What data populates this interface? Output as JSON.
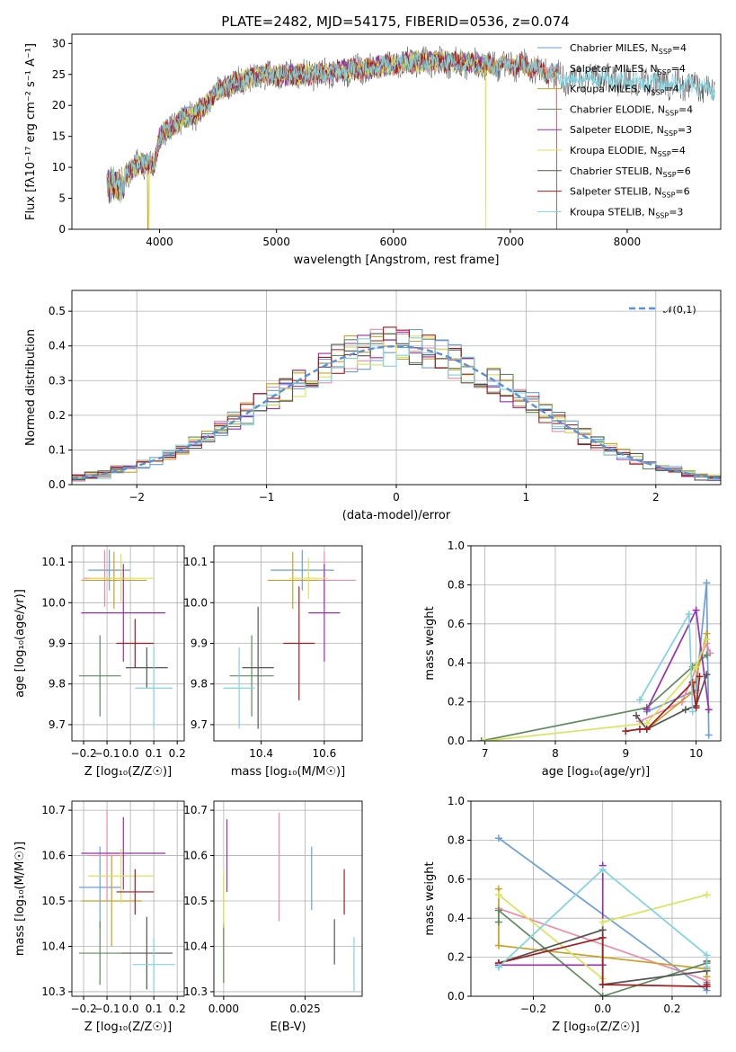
{
  "title": "PLATE=2482, MJD=54175, FIBERID=0536, z=0.074",
  "colors": {
    "Chabrier MILES": "#6a9fd8",
    "Salpeter MILES": "#ef8aa8",
    "Kroupa MILES": "#c9a227",
    "Chabrier ELODIE": "#5e8c5e",
    "Salpeter ELODIE": "#9b2fae",
    "Kroupa ELODIE": "#d9e45a",
    "Chabrier STELIB": "#555555",
    "Salpeter STELIB": "#a31f1f",
    "Kroupa STELIB": "#7fd3e0"
  },
  "chart_data": [
    {
      "type": "line",
      "panel": "spectrum",
      "xlabel": "wavelength [Angstrom, rest frame]",
      "ylabel": "Flux [fλ10⁻¹⁷ erg cm⁻² s⁻¹ A⁻¹]",
      "xlim": [
        3250,
        8800
      ],
      "ylim": [
        0,
        31.5
      ],
      "xticks": [
        4000,
        5000,
        6000,
        7000,
        8000
      ],
      "yticks": [
        0,
        5,
        10,
        15,
        20,
        25,
        30
      ],
      "grid": false,
      "legend_position": "right",
      "continuum_knots_x": [
        3550,
        3700,
        3850,
        3950,
        4000,
        4100,
        4200,
        4300,
        4400,
        4500,
        4700,
        4900,
        5100,
        5300,
        5500,
        5800,
        6100,
        6500,
        6800,
        7100,
        7300,
        7500,
        7700,
        8000,
        8300,
        8600,
        8750
      ],
      "continuum_knots_y": [
        9,
        8.5,
        11,
        10,
        15,
        16.5,
        18,
        18.5,
        20,
        22.5,
        24,
        25,
        25,
        25,
        25.5,
        26,
        27,
        27,
        26.5,
        26.5,
        25.5,
        24,
        24.5,
        24,
        23.5,
        23,
        22.5
      ],
      "series": [
        {
          "name": "Chabrier MILES",
          "nssp": "4",
          "xmax": 7400
        },
        {
          "name": "Salpeter MILES",
          "nssp": "4",
          "xmax": 7400
        },
        {
          "name": "Kroupa MILES",
          "nssp": "4",
          "xmax": 7400,
          "spikes_x": [
            3900
          ]
        },
        {
          "name": "Chabrier ELODIE",
          "nssp": "4",
          "xmax": 6800
        },
        {
          "name": "Salpeter ELODIE",
          "nssp": "3",
          "xmax": 6800
        },
        {
          "name": "Kroupa ELODIE",
          "nssp": "4",
          "xmax": 6800,
          "spikes_x": [
            3910,
            6790
          ]
        },
        {
          "name": "Chabrier STELIB",
          "nssp": "6",
          "xmax": 8750
        },
        {
          "name": "Salpeter STELIB",
          "nssp": "6",
          "xmax": 7400,
          "spikes_x": [
            7400
          ]
        },
        {
          "name": "Kroupa STELIB",
          "nssp": "3",
          "xmax": 8750
        }
      ]
    },
    {
      "type": "step",
      "panel": "residual-histogram",
      "xlabel": "(data-model)/error",
      "ylabel": "Normed distribution",
      "xlim": [
        -2.5,
        2.5
      ],
      "ylim": [
        0,
        0.56
      ],
      "xticks": [
        -2,
        -1,
        0,
        1,
        2
      ],
      "yticks": [
        0.0,
        0.1,
        0.2,
        0.3,
        0.4,
        0.5
      ],
      "grid": true,
      "legend": {
        "label": "𝒩(0,1)",
        "position": "top-right"
      },
      "bin_width": 0.1
    },
    {
      "type": "errorbar",
      "panel": "age-vs-Z",
      "xlabel": "Z [log₁₀(Z/Z☉)]",
      "ylabel": "age  [log₁₀(age/yr)]",
      "xlim": [
        -0.25,
        0.23
      ],
      "ylim": [
        9.66,
        10.14
      ],
      "xticks": [
        -0.2,
        -0.1,
        0.0,
        0.1,
        0.2
      ],
      "yticks": [
        9.7,
        9.8,
        9.9,
        10.0,
        10.1
      ],
      "grid": true,
      "points": [
        {
          "series": "Chabrier MILES",
          "x": -0.09,
          "y": 10.08,
          "xerr": 0.09,
          "yerr": 0.05
        },
        {
          "series": "Salpeter MILES",
          "x": -0.11,
          "y": 10.06,
          "xerr": 0.09,
          "yerr": 0.07
        },
        {
          "series": "Kroupa MILES",
          "x": -0.07,
          "y": 10.055,
          "xerr": 0.14,
          "yerr": 0.07
        },
        {
          "series": "Chabrier ELODIE",
          "x": -0.13,
          "y": 9.82,
          "xerr": 0.09,
          "yerr": 0.1
        },
        {
          "series": "Salpeter ELODIE",
          "x": -0.03,
          "y": 9.975,
          "xerr": 0.18,
          "yerr": 0.12
        },
        {
          "series": "Kroupa ELODIE",
          "x": -0.04,
          "y": 10.06,
          "xerr": 0.14,
          "yerr": 0.06
        },
        {
          "series": "Chabrier STELIB",
          "x": 0.07,
          "y": 9.84,
          "xerr": 0.09,
          "yerr": 0.05
        },
        {
          "series": "Salpeter STELIB",
          "x": 0.02,
          "y": 9.9,
          "xerr": 0.08,
          "yerr": 0.06
        },
        {
          "series": "Kroupa STELIB",
          "x": 0.1,
          "y": 9.79,
          "xerr": 0.08,
          "yerr": 0.1
        }
      ]
    },
    {
      "type": "errorbar",
      "panel": "age-vs-mass",
      "xlabel": "mass [log₁₀(M/M☉)]",
      "ylabel": "",
      "xlim": [
        10.25,
        10.72
      ],
      "ylim": [
        9.66,
        10.14
      ],
      "xticks": [
        10.4,
        10.6
      ],
      "yticks": [
        9.7,
        9.8,
        9.9,
        10.0,
        10.1
      ],
      "grid": true,
      "points": [
        {
          "series": "Chabrier MILES",
          "x": 10.53,
          "y": 10.08,
          "xerr": 0.1,
          "yerr": 0.05
        },
        {
          "series": "Salpeter MILES",
          "x": 10.6,
          "y": 10.055,
          "xerr": 0.1,
          "yerr": 0.07
        },
        {
          "series": "Kroupa MILES",
          "x": 10.5,
          "y": 10.055,
          "xerr": 0.08,
          "yerr": 0.07
        },
        {
          "series": "Chabrier ELODIE",
          "x": 10.37,
          "y": 9.82,
          "xerr": 0.07,
          "yerr": 0.1
        },
        {
          "series": "Salpeter ELODIE",
          "x": 10.6,
          "y": 9.975,
          "xerr": 0.05,
          "yerr": 0.12
        },
        {
          "series": "Kroupa ELODIE",
          "x": 10.55,
          "y": 10.06,
          "xerr": 0.06,
          "yerr": 0.05
        },
        {
          "series": "Chabrier STELIB",
          "x": 10.39,
          "y": 9.84,
          "xerr": 0.05,
          "yerr": 0.15
        },
        {
          "series": "Salpeter STELIB",
          "x": 10.52,
          "y": 9.9,
          "xerr": 0.05,
          "yerr": 0.14
        },
        {
          "series": "Kroupa STELIB",
          "x": 10.33,
          "y": 9.79,
          "xerr": 0.05,
          "yerr": 0.1
        }
      ]
    },
    {
      "type": "line",
      "panel": "mass-weight-vs-age",
      "xlabel": "age  [log₁₀(age/yr)]",
      "ylabel": "mass weight",
      "xlim": [
        6.8,
        10.35
      ],
      "ylim": [
        0,
        1
      ],
      "xticks": [
        7,
        8,
        9,
        10
      ],
      "yticks": [
        0.0,
        0.2,
        0.4,
        0.6,
        0.8,
        1.0
      ],
      "grid": true,
      "series": [
        {
          "name": "Chabrier MILES",
          "x": [
            9.3,
            10.0,
            10.15,
            10.18
          ],
          "y": [
            0.15,
            0.26,
            0.81,
            0.03
          ]
        },
        {
          "name": "Salpeter MILES",
          "x": [
            9.2,
            9.8,
            10.15,
            10.2
          ],
          "y": [
            0.1,
            0.2,
            0.5,
            0.45
          ]
        },
        {
          "name": "Kroupa MILES",
          "x": [
            9.3,
            9.95,
            10.15
          ],
          "y": [
            0.06,
            0.25,
            0.55
          ]
        },
        {
          "name": "Chabrier ELODIE",
          "x": [
            6.95,
            9.3,
            9.95,
            10.15
          ],
          "y": [
            0.0,
            0.17,
            0.38,
            0.44
          ]
        },
        {
          "name": "Salpeter ELODIE",
          "x": [
            9.3,
            10.0,
            10.18
          ],
          "y": [
            0.16,
            0.67,
            0.16
          ]
        },
        {
          "name": "Kroupa ELODIE",
          "x": [
            7.0,
            9.3,
            10.0,
            10.15
          ],
          "y": [
            0.0,
            0.09,
            0.38,
            0.52
          ]
        },
        {
          "name": "Chabrier STELIB",
          "x": [
            9.15,
            9.3,
            9.85,
            10.0,
            10.15
          ],
          "y": [
            0.13,
            0.06,
            0.16,
            0.18,
            0.34
          ]
        },
        {
          "name": "Salpeter STELIB",
          "x": [
            9.0,
            9.2,
            9.3,
            9.95,
            10.0,
            10.05
          ],
          "y": [
            0.05,
            0.06,
            0.06,
            0.3,
            0.17,
            0.33
          ]
        },
        {
          "name": "Kroupa STELIB",
          "x": [
            9.2,
            9.9,
            9.95
          ],
          "y": [
            0.21,
            0.65,
            0.15
          ]
        }
      ]
    },
    {
      "type": "errorbar",
      "panel": "mass-vs-Z",
      "xlabel": "Z [log₁₀(Z/Z☉)]",
      "ylabel": "mass [log₁₀(M/M☉)]",
      "xlim": [
        -0.25,
        0.23
      ],
      "ylim": [
        10.29,
        10.72
      ],
      "xticks": [
        -0.2,
        -0.1,
        0.0,
        0.1,
        0.2
      ],
      "yticks": [
        10.3,
        10.4,
        10.5,
        10.6,
        10.7
      ],
      "grid": true,
      "points": [
        {
          "series": "Chabrier MILES",
          "x": -0.13,
          "y": 10.53,
          "xerr": 0.09,
          "yerr": 0.09
        },
        {
          "series": "Salpeter MILES",
          "x": -0.1,
          "y": 10.6,
          "xerr": 0.08,
          "yerr": 0.1
        },
        {
          "series": "Kroupa MILES",
          "x": -0.08,
          "y": 10.5,
          "xerr": 0.13,
          "yerr": 0.1
        },
        {
          "series": "Chabrier ELODIE",
          "x": -0.13,
          "y": 10.385,
          "xerr": 0.09,
          "yerr": 0.07
        },
        {
          "series": "Salpeter ELODIE",
          "x": -0.03,
          "y": 10.605,
          "xerr": 0.18,
          "yerr": 0.08
        },
        {
          "series": "Kroupa ELODIE",
          "x": -0.04,
          "y": 10.555,
          "xerr": 0.14,
          "yerr": 0.06
        },
        {
          "series": "Chabrier STELIB",
          "x": 0.07,
          "y": 10.385,
          "xerr": 0.11,
          "yerr": 0.08
        },
        {
          "series": "Salpeter STELIB",
          "x": 0.02,
          "y": 10.52,
          "xerr": 0.08,
          "yerr": 0.05
        },
        {
          "series": "Kroupa STELIB",
          "x": 0.1,
          "y": 10.36,
          "xerr": 0.09,
          "yerr": 0.06
        }
      ]
    },
    {
      "type": "errorbar",
      "panel": "mass-vs-EBV",
      "xlabel": "E(B-V)",
      "ylabel": "",
      "xlim": [
        -0.003,
        0.0425
      ],
      "ylim": [
        10.29,
        10.72
      ],
      "xticks": [
        0.0,
        0.025
      ],
      "xtick_labels": [
        "0.000",
        "0.025"
      ],
      "yticks": [
        10.3,
        10.4,
        10.5,
        10.6,
        10.7
      ],
      "grid": true,
      "points": [
        {
          "series": "Chabrier MILES",
          "x": 0.027,
          "y": 10.55,
          "xerr": 0,
          "yerr": 0.07
        },
        {
          "series": "Salpeter MILES",
          "x": 0.017,
          "y": 10.575,
          "xerr": 0,
          "yerr": 0.12
        },
        {
          "series": "Kroupa MILES",
          "x": 0.0,
          "y": 10.44,
          "xerr": 0,
          "yerr": 0.12
        },
        {
          "series": "Chabrier ELODIE",
          "x": 0.0,
          "y": 10.38,
          "xerr": 0,
          "yerr": 0.06
        },
        {
          "series": "Salpeter ELODIE",
          "x": 0.001,
          "y": 10.6,
          "xerr": 0,
          "yerr": 0.08
        },
        {
          "series": "Kroupa ELODIE",
          "x": 0.0,
          "y": 10.51,
          "xerr": 0,
          "yerr": 0.06
        },
        {
          "series": "Chabrier STELIB",
          "x": 0.034,
          "y": 10.41,
          "xerr": 0,
          "yerr": 0.05
        },
        {
          "series": "Salpeter STELIB",
          "x": 0.037,
          "y": 10.52,
          "xerr": 0,
          "yerr": 0.05
        },
        {
          "series": "Kroupa STELIB",
          "x": 0.04,
          "y": 10.36,
          "xerr": 0,
          "yerr": 0.06
        }
      ]
    },
    {
      "type": "line",
      "panel": "mass-weight-vs-Z",
      "xlabel": "Z [log₁₀(Z/Z☉)]",
      "ylabel": "mass weight",
      "xlim": [
        -0.38,
        0.34
      ],
      "ylim": [
        0,
        1
      ],
      "xticks": [
        -0.2,
        0.0,
        0.2
      ],
      "yticks": [
        0.0,
        0.2,
        0.4,
        0.6,
        0.8,
        1.0
      ],
      "grid": true,
      "series": [
        {
          "name": "Chabrier MILES",
          "x": [
            -0.3,
            0.3,
            0.3
          ],
          "y": [
            0.81,
            0.03,
            0.07
          ]
        },
        {
          "name": "Salpeter MILES",
          "x": [
            -0.3,
            0.3,
            0.3
          ],
          "y": [
            0.45,
            0.08,
            0.1
          ]
        },
        {
          "name": "Kroupa MILES",
          "x": [
            -0.3,
            -0.3,
            0.3,
            0.3
          ],
          "y": [
            0.55,
            0.26,
            0.14,
            0.1
          ]
        },
        {
          "name": "Chabrier ELODIE",
          "x": [
            -0.3,
            -0.3,
            0.0,
            0.3
          ],
          "y": [
            0.38,
            0.44,
            0.0,
            0.17
          ]
        },
        {
          "name": "Salpeter ELODIE",
          "x": [
            -0.3,
            0.0,
            0.0
          ],
          "y": [
            0.16,
            0.16,
            0.67
          ]
        },
        {
          "name": "Kroupa ELODIE",
          "x": [
            -0.3,
            0.0,
            0.0,
            0.3
          ],
          "y": [
            0.52,
            0.09,
            0.38,
            0.52
          ]
        },
        {
          "name": "Chabrier STELIB",
          "x": [
            -0.3,
            0.0,
            0.0,
            0.3,
            0.3
          ],
          "y": [
            0.17,
            0.34,
            0.06,
            0.13,
            0.18
          ]
        },
        {
          "name": "Salpeter STELIB",
          "x": [
            -0.3,
            0.0,
            0.0,
            0.3,
            0.3
          ],
          "y": [
            0.17,
            0.3,
            0.06,
            0.05,
            0.06
          ]
        },
        {
          "name": "Kroupa STELIB",
          "x": [
            -0.3,
            -0.3,
            0.0,
            0.3,
            0.3
          ],
          "y": [
            0.15,
            0.15,
            0.65,
            0.21,
            0.15
          ]
        }
      ]
    }
  ]
}
